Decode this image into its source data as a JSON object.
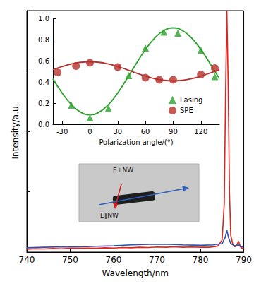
{
  "chart_data": [
    {
      "type": "line",
      "xlabel": "Wavelength/nm",
      "ylabel": "Intensity/a.u.",
      "xlim": [
        740,
        790
      ],
      "xticks": [
        740,
        750,
        760,
        770,
        780,
        790
      ],
      "ylim": [
        0,
        1
      ],
      "yticks": [
        0,
        0.25,
        0.5,
        0.75,
        1
      ],
      "tick_labels": "x",
      "grid": false,
      "annotations": [
        "E⊥NW",
        "E∥NW"
      ],
      "series": [
        {
          "color": "#e0231c",
          "line_style": "solid",
          "x": [
            740,
            742,
            744,
            746,
            748,
            750,
            752,
            754,
            756,
            758,
            760,
            762,
            764,
            766,
            768,
            770,
            772,
            774,
            776,
            778,
            780,
            782,
            783,
            784,
            785,
            785.5,
            785.8,
            786.1,
            786.4,
            786.7,
            787,
            787.5,
            788,
            788.4,
            788.8,
            789.2,
            789.6,
            790
          ],
          "values": [
            0.012,
            0.014,
            0.013,
            0.015,
            0.014,
            0.016,
            0.015,
            0.017,
            0.016,
            0.018,
            0.017,
            0.019,
            0.018,
            0.02,
            0.019,
            0.021,
            0.02,
            0.022,
            0.02,
            0.021,
            0.02,
            0.02,
            0.022,
            0.025,
            0.05,
            0.2,
            0.65,
            1.0,
            0.7,
            0.25,
            0.07,
            0.03,
            0.022,
            0.03,
            0.045,
            0.022,
            0.016,
            0.014
          ]
        },
        {
          "color": "#2f4fa8",
          "line_style": "solid",
          "x": [
            740,
            744,
            748,
            752,
            756,
            760,
            764,
            768,
            772,
            776,
            780,
            783,
            785,
            785.7,
            786.1,
            786.5,
            787,
            788,
            788.8,
            789.5,
            790
          ],
          "values": [
            0.018,
            0.02,
            0.022,
            0.021,
            0.024,
            0.026,
            0.03,
            0.032,
            0.033,
            0.03,
            0.028,
            0.03,
            0.035,
            0.06,
            0.09,
            0.06,
            0.035,
            0.026,
            0.03,
            0.022,
            0.02
          ]
        }
      ]
    },
    {
      "type": "scatter",
      "xlabel": "Polarization angle/(°)",
      "xlim": [
        -40,
        140
      ],
      "xticks": [
        -30,
        0,
        30,
        60,
        90,
        120
      ],
      "ylim": [
        0,
        1
      ],
      "yticks": [
        {
          "value": 0,
          "label": "0.0"
        },
        0.2,
        0.4,
        0.6,
        0.8,
        {
          "value": 1,
          "label": "1.0"
        }
      ],
      "grid": false,
      "legend": "lower right",
      "series": [
        {
          "name": "Lasing",
          "type": "scatter",
          "marker": "triangle",
          "color": "#2ca02c",
          "x": [
            -20,
            0,
            20,
            42,
            60,
            80,
            95,
            120,
            135
          ],
          "values": [
            0.18,
            0.06,
            0.15,
            0.46,
            0.72,
            0.87,
            0.86,
            0.7,
            0.45
          ]
        },
        {
          "name": "SPE",
          "type": "scatter",
          "marker": "circle",
          "color": "#b5302a",
          "x": [
            -35,
            -15,
            0,
            30,
            60,
            75,
            90,
            120,
            135
          ],
          "values": [
            0.49,
            0.55,
            0.58,
            0.54,
            0.44,
            0.42,
            0.42,
            0.47,
            0.53
          ]
        },
        {
          "type": "line",
          "line_style": "solid",
          "color": "#2ca02c",
          "x": [
            -40,
            -30,
            -20,
            -10,
            0,
            10,
            20,
            30,
            40,
            50,
            60,
            70,
            80,
            90,
            100,
            110,
            120,
            130,
            140
          ],
          "values": [
            0.43,
            0.295,
            0.186,
            0.115,
            0.09,
            0.115,
            0.186,
            0.295,
            0.43,
            0.571,
            0.705,
            0.814,
            0.885,
            0.91,
            0.885,
            0.814,
            0.705,
            0.571,
            0.43
          ]
        },
        {
          "type": "line",
          "line_style": "solid",
          "color": "#b5302a",
          "x": [
            -40,
            -30,
            -20,
            -10,
            0,
            10,
            20,
            30,
            40,
            50,
            60,
            70,
            80,
            90,
            100,
            110,
            120,
            130,
            140
          ],
          "values": [
            0.516,
            0.545,
            0.569,
            0.585,
            0.59,
            0.585,
            0.569,
            0.545,
            0.516,
            0.484,
            0.455,
            0.431,
            0.415,
            0.41,
            0.415,
            0.431,
            0.455,
            0.484,
            0.516
          ]
        }
      ]
    }
  ]
}
